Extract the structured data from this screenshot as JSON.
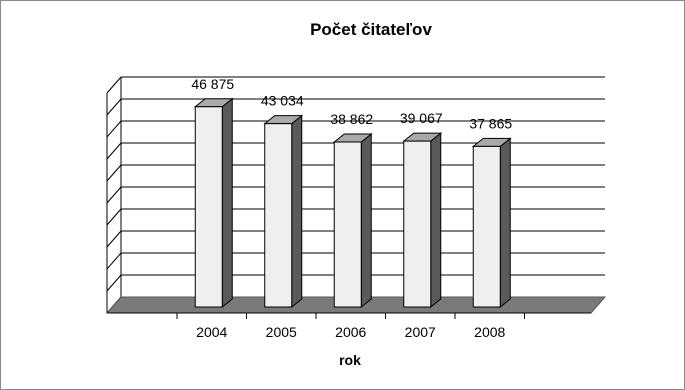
{
  "chart_data": {
    "type": "bar",
    "title": "Počet čitateľov",
    "xlabel": "rok",
    "ylabel": "",
    "categories": [
      "2004",
      "2005",
      "2006",
      "2007",
      "2008"
    ],
    "values": [
      46875,
      43034,
      38862,
      39067,
      37865
    ],
    "value_labels": [
      "46 875",
      "43 034",
      "38 862",
      "39 067",
      "37 865"
    ],
    "ylim": [
      0,
      50000
    ],
    "gridlines": 10,
    "grid": true,
    "legend": "none",
    "style": "3d-column",
    "colors": {
      "bar_front": "#efefef",
      "bar_side": "#5a5a5a",
      "bar_top": "#a9a9a9",
      "floor": "#7a7a7a",
      "grid": "#000000"
    }
  }
}
